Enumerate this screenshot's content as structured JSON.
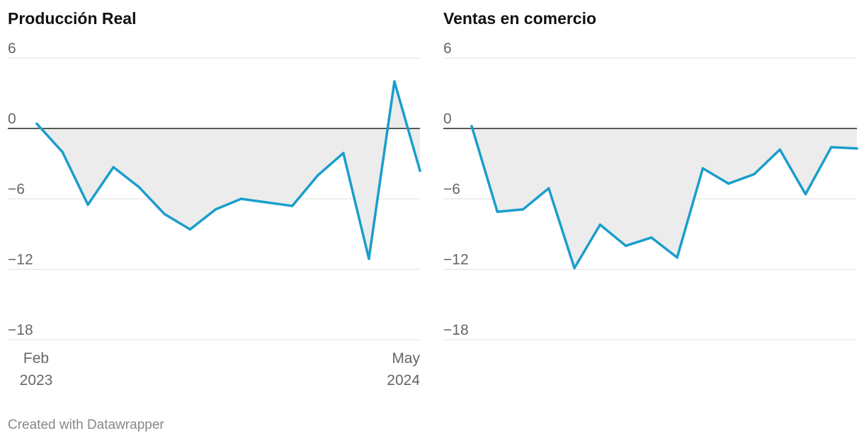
{
  "colors": {
    "line": "#1a9ecb",
    "area": "#ececec",
    "zero_line": "#222222",
    "grid": "#e0e0e0"
  },
  "footer": {
    "credit": "Created with Datawrapper"
  },
  "chart_data": [
    {
      "type": "area",
      "title": "Producción Real",
      "x": [
        "2023-02",
        "2023-03",
        "2023-04",
        "2023-05",
        "2023-06",
        "2023-07",
        "2023-08",
        "2023-09",
        "2023-10",
        "2023-11",
        "2023-12",
        "2024-01",
        "2024-02",
        "2024-03",
        "2024-04",
        "2024-05"
      ],
      "values": [
        0.4,
        -2.0,
        -6.5,
        -3.3,
        -5.0,
        -7.3,
        -8.6,
        -6.9,
        -6.0,
        -6.3,
        -6.6,
        -4.0,
        -2.1,
        -11.1,
        4.0,
        -3.6
      ],
      "yticks": [
        6,
        0,
        -6,
        -12,
        -18
      ],
      "ytick_labels": [
        "6",
        "0",
        "−6",
        "−12",
        "−18"
      ],
      "ylim": [
        -18,
        6
      ],
      "x_labels": [
        {
          "month": "Feb",
          "year": "2023"
        },
        {
          "month": "May",
          "year": "2024"
        }
      ]
    },
    {
      "type": "area",
      "title": "Ventas en comercio",
      "x": [
        "2023-02",
        "2023-03",
        "2023-04",
        "2023-05",
        "2023-06",
        "2023-07",
        "2023-08",
        "2023-09",
        "2023-10",
        "2023-11",
        "2023-12",
        "2024-01",
        "2024-02",
        "2024-03",
        "2024-04",
        "2024-05"
      ],
      "values": [
        0.2,
        -7.1,
        -6.9,
        -5.1,
        -11.9,
        -8.2,
        -10.0,
        -9.3,
        -11.0,
        -3.4,
        -4.7,
        -3.9,
        -1.8,
        -5.6,
        -1.6,
        -1.7
      ],
      "yticks": [
        6,
        0,
        -6,
        -12,
        -18
      ],
      "ytick_labels": [
        "6",
        "0",
        "−6",
        "−12",
        "−18"
      ],
      "ylim": [
        -18,
        6
      ]
    }
  ]
}
